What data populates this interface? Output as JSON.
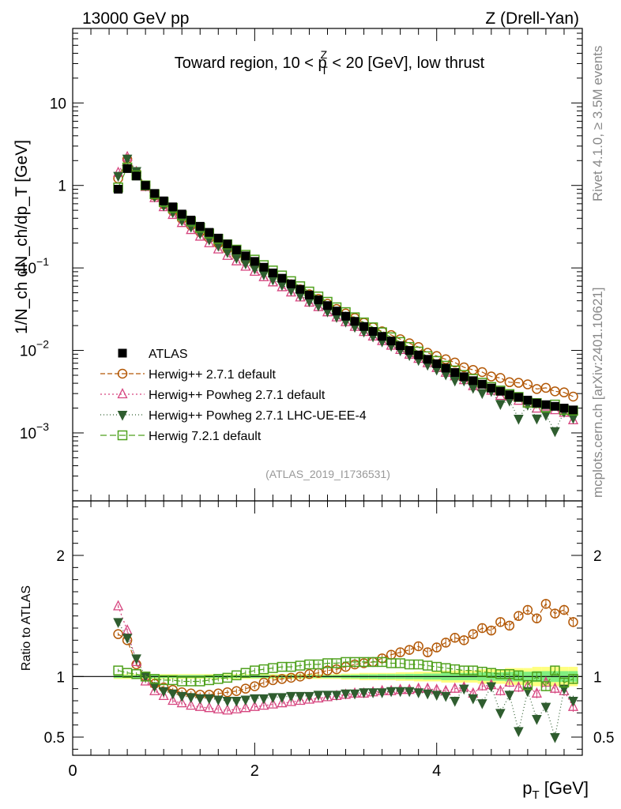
{
  "header": {
    "left": "13000 GeV pp",
    "right": "Z (Drell-Yan)"
  },
  "side_labels": {
    "rivet": "Rivet 4.1.0, ≥ 3.5M events",
    "mcplots": "mcplots.cern.ch [arXiv:2401.10621]"
  },
  "chart_data": {
    "type": "scatter",
    "title": "Toward region, 10 < p_T^Z < 20 [GeV], low thrust",
    "title_parts": {
      "pre": "Toward region, 10 < p",
      "sup": "Z",
      "sub": "T",
      "post": " < 20 [GeV], low thrust"
    },
    "analysis_id": "(ATLAS_2019_I1736531)",
    "xlabel": "p_T [GeV]",
    "xlabel_parts": {
      "main": "p",
      "sub": "T",
      "unit": " [GeV]"
    },
    "ylabel": "1/N_ch dN_ch/dp_T [GeV]",
    "ratio_ylabel": "Ratio to ATLAS",
    "xlim": [
      0,
      5.6
    ],
    "ylim": [
      0.00015,
      80
    ],
    "ratio_ylim": [
      0.35,
      2.45
    ],
    "x_ticks": [
      0,
      2,
      4
    ],
    "x_tick_labels": [
      "0",
      "2",
      "4"
    ],
    "y_ticks": [
      0.001,
      0.01,
      0.1,
      1,
      10
    ],
    "y_tick_labels": [
      {
        "base": "10",
        "exp": "−3"
      },
      {
        "base": "10",
        "exp": "−2"
      },
      {
        "base": "10",
        "exp": "−1"
      },
      {
        "base": "1",
        "exp": ""
      },
      {
        "base": "10",
        "exp": ""
      }
    ],
    "ratio_ticks": [
      0.5,
      1,
      2
    ],
    "ratio_tick_labels": [
      "0.5",
      "1",
      "2"
    ],
    "data_series": "ATLAS",
    "x": [
      0.5,
      0.6,
      0.7,
      0.8,
      0.9,
      1.0,
      1.1,
      1.2,
      1.3,
      1.4,
      1.5,
      1.6,
      1.7,
      1.8,
      1.9,
      2.0,
      2.1,
      2.2,
      2.3,
      2.4,
      2.5,
      2.6,
      2.7,
      2.8,
      2.9,
      3.0,
      3.1,
      3.2,
      3.3,
      3.4,
      3.5,
      3.6,
      3.7,
      3.8,
      3.9,
      4.0,
      4.1,
      4.2,
      4.3,
      4.4,
      4.5,
      4.6,
      4.7,
      4.8,
      4.9,
      5.0,
      5.1,
      5.2,
      5.3,
      5.4,
      5.5
    ],
    "atlas": [
      0.9,
      1.6,
      1.3,
      1.0,
      0.8,
      0.65,
      0.55,
      0.45,
      0.38,
      0.32,
      0.27,
      0.23,
      0.195,
      0.165,
      0.14,
      0.12,
      0.102,
      0.087,
      0.075,
      0.064,
      0.055,
      0.047,
      0.041,
      0.035,
      0.03,
      0.026,
      0.0225,
      0.0195,
      0.017,
      0.0148,
      0.013,
      0.0114,
      0.01,
      0.0088,
      0.0078,
      0.0069,
      0.0061,
      0.0054,
      0.0048,
      0.0043,
      0.0039,
      0.0035,
      0.0032,
      0.0029,
      0.0027,
      0.0025,
      0.0023,
      0.0022,
      0.0021,
      0.002,
      0.0019
    ],
    "band_outer": [
      0.02,
      0.02,
      0.02,
      0.02,
      0.02,
      0.02,
      0.02,
      0.02,
      0.02,
      0.02,
      0.02,
      0.02,
      0.02,
      0.02,
      0.02,
      0.02,
      0.02,
      0.02,
      0.02,
      0.02,
      0.02,
      0.02,
      0.02,
      0.02,
      0.02,
      0.025,
      0.025,
      0.03,
      0.03,
      0.03,
      0.03,
      0.035,
      0.035,
      0.04,
      0.04,
      0.04,
      0.05,
      0.05,
      0.05,
      0.05,
      0.06,
      0.06,
      0.06,
      0.07,
      0.07,
      0.07,
      0.08,
      0.08,
      0.08,
      0.08,
      0.08
    ],
    "band_inner": [
      0.012,
      0.012,
      0.012,
      0.012,
      0.012,
      0.012,
      0.012,
      0.012,
      0.012,
      0.012,
      0.012,
      0.012,
      0.012,
      0.012,
      0.012,
      0.012,
      0.012,
      0.012,
      0.012,
      0.012,
      0.012,
      0.012,
      0.012,
      0.012,
      0.012,
      0.015,
      0.015,
      0.018,
      0.018,
      0.02,
      0.02,
      0.02,
      0.022,
      0.022,
      0.025,
      0.025,
      0.03,
      0.03,
      0.03,
      0.03,
      0.035,
      0.035,
      0.035,
      0.04,
      0.04,
      0.04,
      0.045,
      0.045,
      0.045,
      0.045,
      0.045
    ],
    "series": [
      {
        "name": "Herwig++ 2.7.1 default",
        "marker": "circle",
        "color": "#b35806",
        "dash": "6,3",
        "ratio": [
          1.35,
          1.3,
          1.1,
          1.0,
          0.94,
          0.91,
          0.89,
          0.87,
          0.86,
          0.85,
          0.85,
          0.86,
          0.87,
          0.88,
          0.9,
          0.92,
          0.95,
          0.97,
          0.98,
          0.99,
          1.0,
          1.02,
          1.03,
          1.05,
          1.06,
          1.08,
          1.1,
          1.11,
          1.12,
          1.15,
          1.18,
          1.2,
          1.22,
          1.25,
          1.2,
          1.24,
          1.28,
          1.32,
          1.3,
          1.35,
          1.4,
          1.38,
          1.45,
          1.42,
          1.5,
          1.55,
          1.48,
          1.6,
          1.52,
          1.55,
          1.45
        ]
      },
      {
        "name": "Herwig++ Powheg 2.7.1 default",
        "marker": "triangle-up",
        "color": "#d6457f",
        "dash": "2,3",
        "ratio": [
          1.58,
          1.38,
          1.12,
          0.96,
          0.88,
          0.84,
          0.8,
          0.78,
          0.76,
          0.75,
          0.74,
          0.73,
          0.72,
          0.73,
          0.74,
          0.75,
          0.76,
          0.77,
          0.78,
          0.79,
          0.8,
          0.81,
          0.82,
          0.83,
          0.84,
          0.85,
          0.86,
          0.86,
          0.87,
          0.88,
          0.88,
          0.89,
          0.89,
          0.9,
          0.9,
          0.89,
          0.88,
          0.9,
          0.91,
          0.86,
          0.92,
          0.93,
          0.88,
          0.95,
          0.91,
          0.92,
          0.86,
          0.95,
          0.9,
          0.88,
          0.75
        ]
      },
      {
        "name": "Herwig++ Powheg 2.7.1 LHC-UE-EE-4",
        "marker": "triangle-down",
        "color": "#2f5d2f",
        "dash": "1,3",
        "ratio": [
          1.45,
          1.32,
          1.15,
          1.0,
          0.92,
          0.88,
          0.86,
          0.84,
          0.83,
          0.82,
          0.82,
          0.81,
          0.8,
          0.8,
          0.81,
          0.82,
          0.82,
          0.83,
          0.83,
          0.84,
          0.84,
          0.84,
          0.85,
          0.85,
          0.85,
          0.86,
          0.86,
          0.87,
          0.87,
          0.87,
          0.88,
          0.88,
          0.88,
          0.87,
          0.86,
          0.85,
          0.84,
          0.8,
          0.9,
          0.82,
          0.78,
          0.92,
          0.7,
          0.85,
          0.55,
          0.88,
          0.65,
          0.75,
          0.5,
          0.9,
          0.8
        ]
      },
      {
        "name": "Herwig 7.2.1 default",
        "marker": "square",
        "color": "#4fa11d",
        "dash": "8,4",
        "ratio": [
          1.05,
          1.03,
          1.02,
          1.0,
          0.98,
          0.97,
          0.97,
          0.96,
          0.96,
          0.96,
          0.97,
          0.98,
          0.99,
          1.01,
          1.03,
          1.05,
          1.06,
          1.07,
          1.08,
          1.08,
          1.09,
          1.1,
          1.1,
          1.11,
          1.11,
          1.12,
          1.12,
          1.12,
          1.12,
          1.12,
          1.11,
          1.11,
          1.1,
          1.1,
          1.09,
          1.08,
          1.07,
          1.06,
          1.05,
          1.05,
          1.04,
          1.03,
          1.02,
          1.02,
          1.01,
          0.93,
          1.0,
          0.92,
          1.05,
          0.95,
          0.98
        ]
      }
    ],
    "legend_position": "lower-left"
  }
}
